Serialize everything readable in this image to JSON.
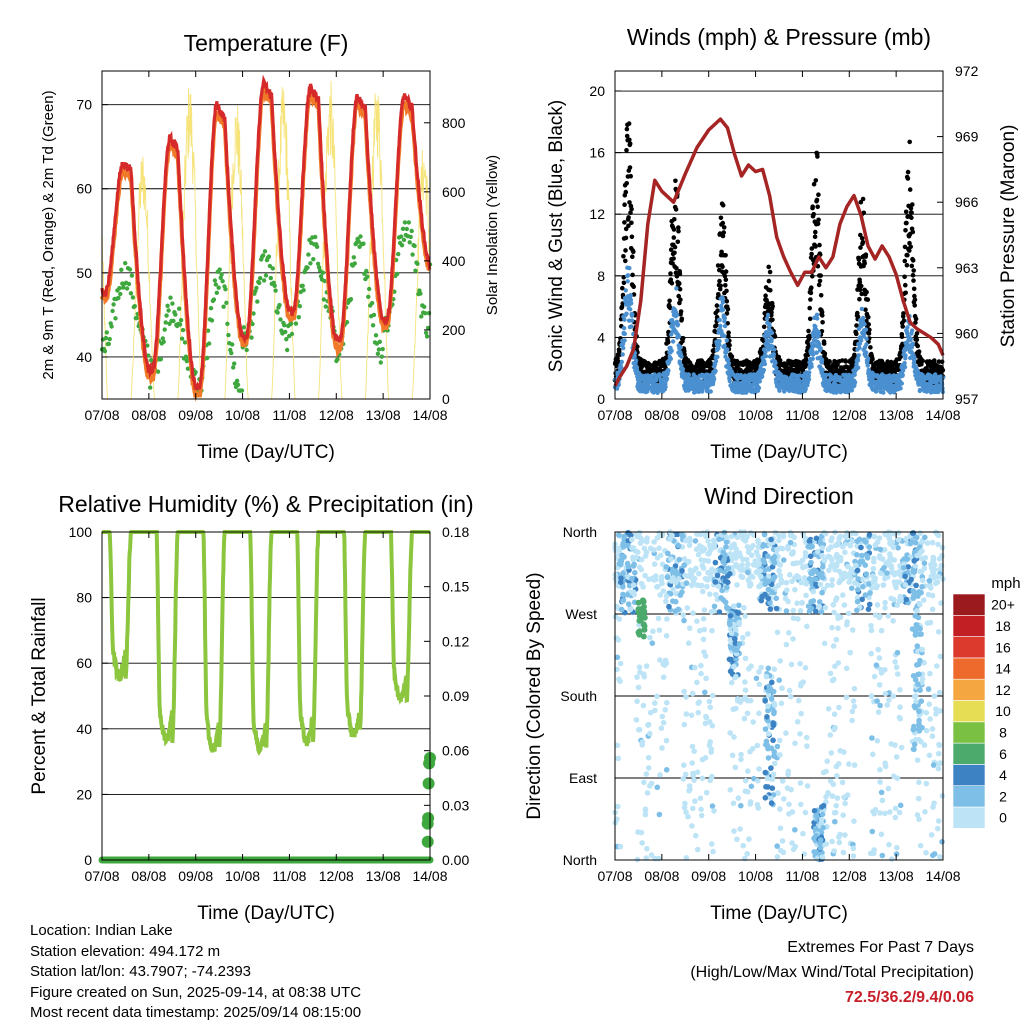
{
  "x_tick_labels": [
    "07/08",
    "08/08",
    "09/08",
    "10/08",
    "11/08",
    "12/08",
    "13/08",
    "14/08"
  ],
  "x_label": "Time (Day/UTC)",
  "chart_data": [
    {
      "type": "line",
      "title": "Temperature (F)",
      "xlabel": "Time (Day/UTC)",
      "ylabel": "2m & 9m T (Red, Orange) & 2m Td (Green)",
      "y2label": "Solar Insolation (Yellow)",
      "x_range_days": [
        0,
        7
      ],
      "ylim": [
        35,
        74
      ],
      "y2lim": [
        0,
        950
      ],
      "yticks": [
        40,
        50,
        60,
        70
      ],
      "y2ticks": [
        0,
        200,
        400,
        600,
        800
      ],
      "highs": [
        63,
        66,
        70,
        72.5,
        72,
        71,
        71
      ],
      "lows": [
        48,
        38.5,
        36.5,
        42.5,
        45.5,
        42,
        44.5
      ],
      "end_temp": 51,
      "dew_highs": [
        50,
        46,
        49,
        51,
        53,
        53,
        56
      ],
      "dew_lows": [
        41,
        38,
        36,
        42,
        44,
        41,
        44
      ],
      "solar_peaks": [
        870,
        730,
        930,
        880,
        920,
        930,
        930,
        750
      ],
      "series": [
        {
          "name": "2m T",
          "color": "#d62a2a"
        },
        {
          "name": "9m T",
          "color": "#f07a28"
        },
        {
          "name": "2m Td",
          "color": "#3ea83e"
        },
        {
          "name": "Solar Insolation",
          "color": "#f5e06a"
        }
      ]
    },
    {
      "type": "scatter",
      "title": "Winds (mph) & Pressure (mb)",
      "xlabel": "Time (Day/UTC)",
      "ylabel": "Sonic Wind & Gust (Blue, Black)",
      "y2label": "Station Pressure (Maroon)",
      "x_range_days": [
        0,
        7
      ],
      "ylim": [
        0,
        21.3
      ],
      "y2lim": [
        957,
        972
      ],
      "yticks": [
        0,
        4,
        8,
        12,
        16,
        20
      ],
      "y2ticks": [
        957,
        960,
        963,
        966,
        969,
        972
      ],
      "gust_peaks": [
        19.3,
        15.2,
        13.6,
        8.5,
        17.2,
        13.5,
        17
      ],
      "wind_peaks": [
        9.4,
        7.5,
        7,
        6,
        5.8,
        6,
        5.5
      ],
      "pressure": {
        "x": [
          0,
          0.1,
          0.25,
          0.4,
          0.55,
          0.7,
          0.85,
          1.0,
          1.25,
          1.5,
          1.75,
          2.0,
          2.25,
          2.4,
          2.55,
          2.7,
          2.85,
          3.0,
          3.15,
          3.3,
          3.45,
          3.6,
          3.75,
          3.9,
          4.05,
          4.2,
          4.35,
          4.5,
          4.65,
          4.8,
          4.95,
          5.1,
          5.25,
          5.4,
          5.55,
          5.7,
          5.85,
          6.0,
          6.15,
          6.3,
          6.45,
          6.6,
          6.75,
          6.9,
          7.0
        ],
        "y": [
          957.6,
          958.0,
          958.5,
          959.3,
          961.5,
          965.0,
          967.0,
          966.5,
          966.0,
          967.3,
          968.5,
          969.3,
          969.8,
          969.4,
          968.2,
          967.2,
          967.7,
          967.4,
          967.5,
          966.3,
          964.4,
          963.5,
          962.8,
          962.2,
          962.8,
          962.8,
          963.5,
          963.0,
          963.5,
          965.0,
          965.8,
          966.3,
          965.4,
          964.0,
          963.4,
          964.0,
          963.5,
          962.7,
          961.5,
          960.5,
          960.2,
          960.0,
          959.8,
          959.5,
          959.0
        ]
      },
      "series": [
        {
          "name": "Sonic Wind",
          "color": "#4a90d0"
        },
        {
          "name": "Gust",
          "color": "#000000"
        },
        {
          "name": "Station Pressure",
          "color": "#a52424"
        }
      ]
    },
    {
      "type": "line",
      "title": "Relative Humidity (%) & Precipitation (in)",
      "xlabel": "Time (Day/UTC)",
      "ylabel": "Percent & Total Rainfall",
      "x_range_days": [
        0,
        7
      ],
      "ylim": [
        0,
        100
      ],
      "y2lim": [
        0,
        0.18
      ],
      "yticks": [
        0,
        20,
        40,
        60,
        80,
        100
      ],
      "y2ticks": [
        "0.00",
        "0.03",
        "0.06",
        "0.09",
        "0.12",
        "0.15",
        "0.18"
      ],
      "rh_mins": [
        56,
        37,
        34,
        34,
        36,
        38,
        49
      ],
      "precip_points": [
        {
          "x": 6.95,
          "y": 0.01
        },
        {
          "x": 6.95,
          "y": 0.02
        },
        {
          "x": 6.96,
          "y": 0.023
        },
        {
          "x": 6.97,
          "y": 0.042
        },
        {
          "x": 6.98,
          "y": 0.053
        },
        {
          "x": 7.0,
          "y": 0.056
        }
      ],
      "series": [
        {
          "name": "Relative Humidity",
          "color": "#8cc63f"
        },
        {
          "name": "Precipitation",
          "color": "#3ea83e"
        }
      ]
    },
    {
      "type": "scatter",
      "title": "Wind Direction",
      "xlabel": "Time (Day/UTC)",
      "ylabel": "Direction (Colored By Speed)",
      "x_range_days": [
        0,
        7
      ],
      "ylim": [
        0,
        360
      ],
      "ytick_labels": [
        "North",
        "East",
        "South",
        "West",
        "North"
      ],
      "colorbar": {
        "unit": "mph",
        "labels": [
          "0",
          "2",
          "4",
          "6",
          "8",
          "10",
          "12",
          "14",
          "16",
          "18",
          "20+"
        ],
        "colors": [
          "#bde4f6",
          "#7ebfe8",
          "#3d83c4",
          "#4caa6c",
          "#7ac143",
          "#e6dd55",
          "#f4a641",
          "#ee6a2c",
          "#dc3a2c",
          "#c21f24",
          "#9a1a1e"
        ]
      }
    }
  ],
  "info": {
    "location": "Location: Indian Lake",
    "elevation": "Station elevation: 494.172 m",
    "latlon": "Station lat/lon: 43.7907; -74.2393",
    "created": "Figure created on Sun, 2025-09-14, at 08:38 UTC",
    "recent": "Most recent data timestamp: 2025/09/14 08:15:00"
  },
  "extremes": {
    "line1": "Extremes For Past 7 Days",
    "line2": "(High/Low/Max Wind/Total Precipitation)",
    "value": "72.5/36.2/9.4/0.06"
  }
}
